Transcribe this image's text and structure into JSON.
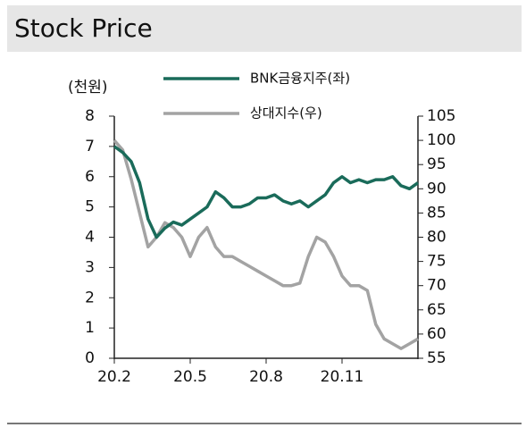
{
  "chart_data": {
    "type": "line",
    "title": "Stock Price",
    "y_unit": "(천원)",
    "categories": [
      "20.2",
      null,
      null,
      null,
      null,
      null,
      null,
      null,
      null,
      "20.5",
      null,
      null,
      null,
      null,
      null,
      null,
      null,
      null,
      "20.8",
      null,
      null,
      null,
      null,
      null,
      null,
      null,
      null,
      "20.11",
      null,
      null,
      null,
      null,
      null,
      null,
      null,
      null,
      null
    ],
    "series": [
      {
        "name": "BNK금융지주(좌)",
        "color": "#1a6b5a",
        "values": [
          7.0,
          6.8,
          6.5,
          5.8,
          4.6,
          4.0,
          4.3,
          4.5,
          4.4,
          4.6,
          4.8,
          5.0,
          5.5,
          5.3,
          5.0,
          5.0,
          5.1,
          5.3,
          5.3,
          5.4,
          5.2,
          5.1,
          5.2,
          5.0,
          5.2,
          5.4,
          5.8,
          6.0,
          5.8,
          5.9,
          5.8,
          5.9,
          5.9,
          6.0,
          5.7,
          5.6,
          5.8
        ]
      },
      {
        "name": "상대지수(우)",
        "color": "#a3a3a3",
        "axis": "y2",
        "values": [
          100,
          98,
          92,
          85,
          78,
          80,
          83,
          82,
          80,
          76,
          80,
          82,
          78,
          76,
          76,
          75,
          74,
          73,
          72,
          71,
          70,
          70,
          70.5,
          76,
          80,
          79,
          76,
          72,
          70,
          70,
          69,
          62,
          59,
          58,
          57,
          58,
          59
        ]
      }
    ],
    "ylim": [
      0,
      8
    ],
    "yticks": [
      0,
      1,
      2,
      3,
      4,
      5,
      6,
      7,
      8
    ],
    "y2lim": [
      55,
      105
    ],
    "y2ticks": [
      55,
      60,
      65,
      70,
      75,
      80,
      85,
      90,
      95,
      100,
      105
    ]
  }
}
